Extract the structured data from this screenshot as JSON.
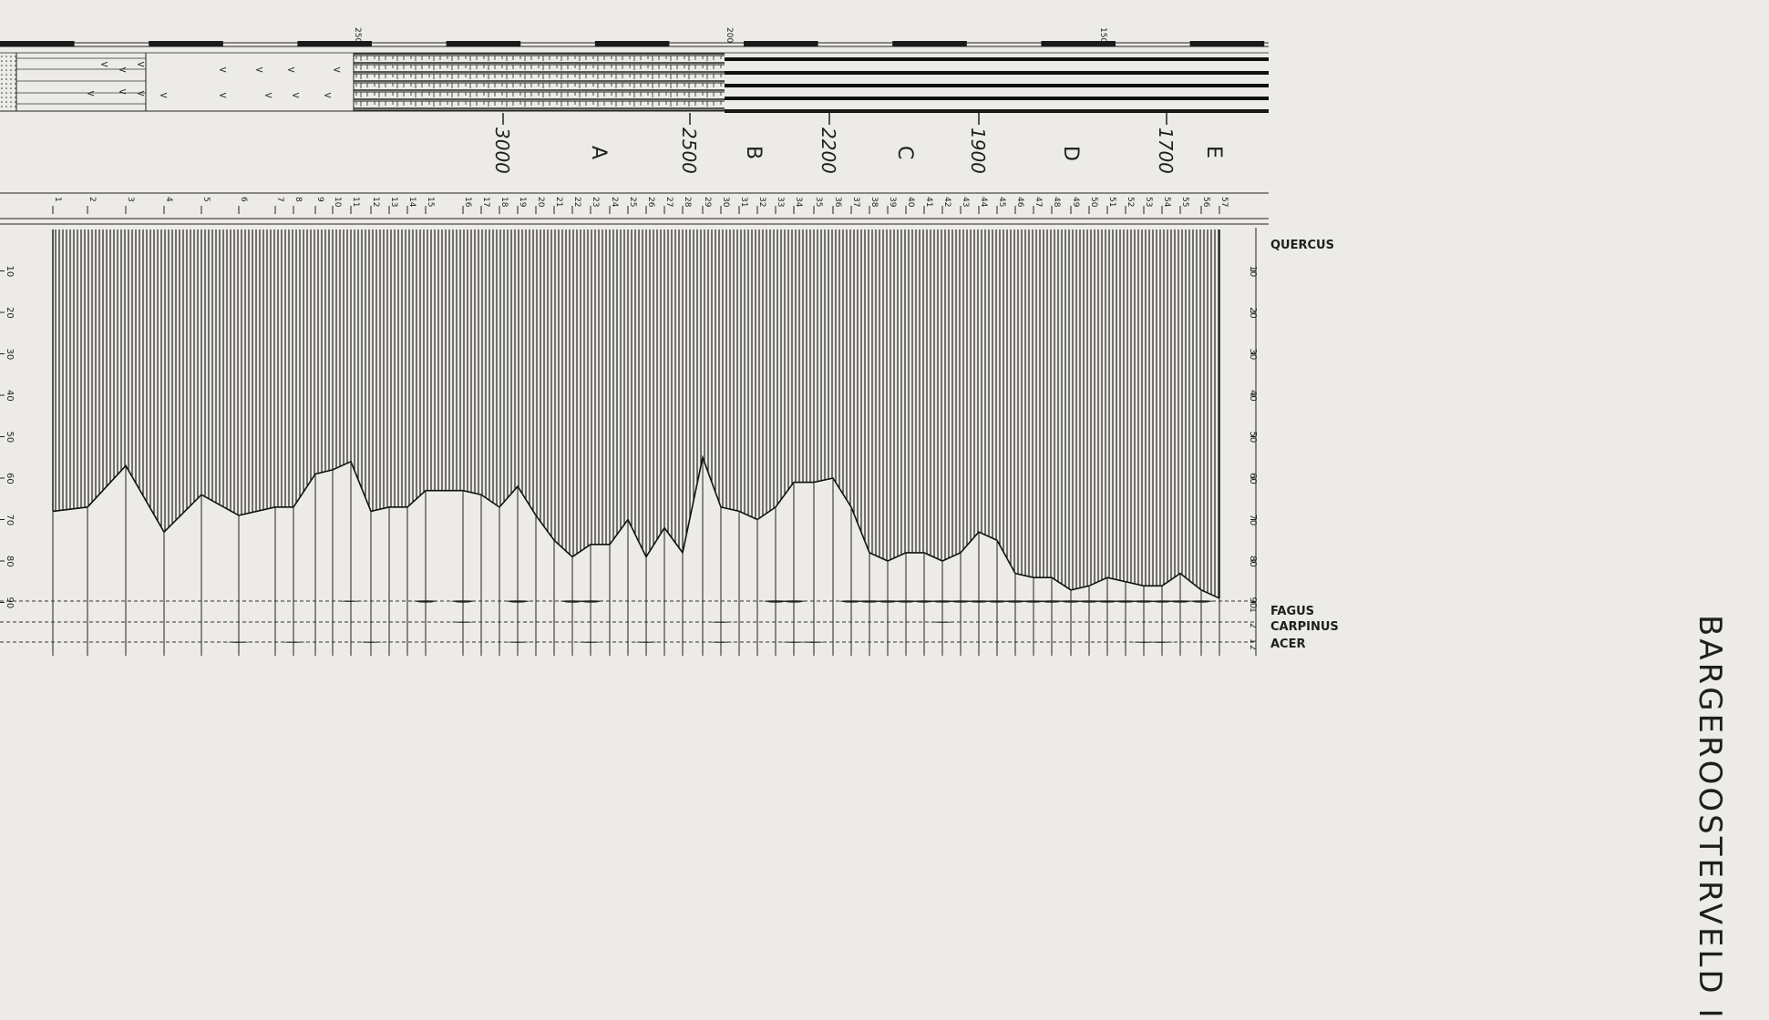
{
  "title": "BARGEROOSTERVELD I",
  "chart_data": {
    "type": "area",
    "title": "BARGEROOSTERVELD I",
    "samples": [
      "1",
      "2",
      "3",
      "4",
      "5",
      "6",
      "7",
      "8",
      "9",
      "10",
      "11",
      "12",
      "13",
      "14",
      "15",
      "16",
      "17",
      "18",
      "19",
      "20",
      "21",
      "22",
      "23",
      "24",
      "25",
      "26",
      "27",
      "28",
      "29",
      "30",
      "31",
      "32",
      "33",
      "34",
      "35",
      "36",
      "37",
      "38",
      "39",
      "40",
      "41",
      "42",
      "43",
      "44",
      "45",
      "46",
      "47",
      "48",
      "49",
      "50",
      "51",
      "52",
      "53",
      "54",
      "55",
      "56",
      "57"
    ],
    "depth_scale": {
      "labels": [
        "250",
        "200",
        "150"
      ]
    },
    "radiocarbon_ages": [
      "3000",
      "2500",
      "2200",
      "1900",
      "1700"
    ],
    "zones": [
      "A",
      "B",
      "C",
      "D",
      "E"
    ],
    "percent_ticks": [
      "10",
      "20",
      "30",
      "40",
      "50",
      "60",
      "70",
      "80",
      "90"
    ],
    "series": [
      {
        "name": "QUERCUS",
        "values": [
          68,
          67,
          57,
          73,
          64,
          69,
          67,
          67,
          59,
          58,
          56,
          68,
          67,
          67,
          63,
          63,
          64,
          67,
          62,
          69,
          75,
          79,
          76,
          76,
          70,
          79,
          72,
          78,
          55,
          67,
          68,
          70,
          67,
          61,
          61,
          60,
          67,
          78,
          80,
          78,
          78,
          80,
          78,
          73,
          75,
          83,
          84,
          84,
          87,
          86,
          84,
          85,
          86,
          86,
          83,
          87,
          89
        ]
      },
      {
        "name": "FAGUS",
        "values": [
          0,
          0,
          0,
          0,
          0,
          0,
          0,
          0,
          0,
          0,
          1,
          0,
          0,
          0,
          2,
          2,
          0,
          0,
          2,
          0,
          0,
          2,
          2,
          0,
          0,
          0,
          0,
          0,
          0,
          0,
          0,
          0,
          2,
          2,
          0,
          0,
          2,
          2,
          2,
          2,
          2,
          2,
          2,
          2,
          2,
          2,
          2,
          2,
          2,
          2,
          2,
          2,
          2,
          2,
          2,
          2,
          0
        ]
      },
      {
        "name": "CARPINUS",
        "values": [
          0,
          0,
          0,
          0,
          0,
          0,
          0,
          0,
          0,
          0,
          0,
          0,
          0,
          0,
          0,
          1,
          0,
          0,
          0,
          0,
          0,
          0,
          0,
          0,
          0,
          0,
          0,
          0,
          0,
          1,
          0,
          0,
          0,
          0,
          0,
          0,
          0,
          0,
          0,
          0,
          0,
          1,
          0,
          0,
          0,
          0,
          0,
          0,
          0,
          0,
          0,
          0,
          0,
          0,
          0,
          0,
          0
        ]
      },
      {
        "name": "ACER",
        "values": [
          0,
          0,
          0,
          0,
          0,
          1,
          0,
          1,
          0,
          0,
          0,
          1,
          0,
          0,
          0,
          0,
          0,
          0,
          1,
          0,
          0,
          0,
          1,
          0,
          0,
          1,
          0,
          0,
          0,
          1,
          0,
          0,
          0,
          1,
          1,
          0,
          0,
          0,
          0,
          0,
          0,
          0,
          0,
          0,
          0,
          0,
          0,
          0,
          0,
          0,
          0,
          0,
          1,
          1,
          0,
          0,
          0
        ]
      }
    ],
    "small_ticks": [
      "1",
      "2",
      "1",
      "2"
    ],
    "colors": {
      "ink": "#1e1e1e",
      "paper": "#ecebe7"
    }
  }
}
